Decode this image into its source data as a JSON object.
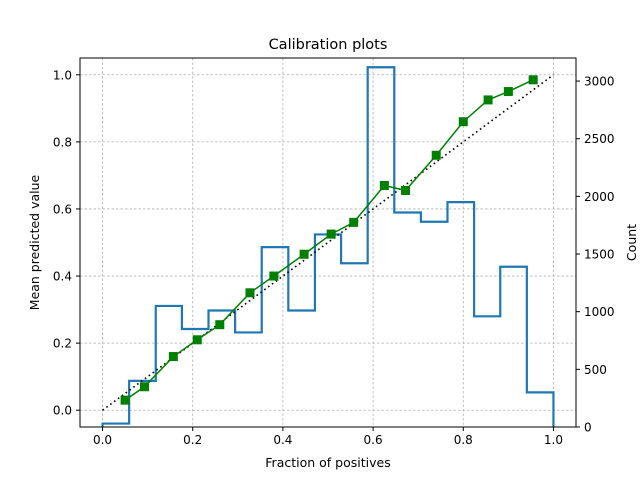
{
  "chart_data": {
    "type": "line",
    "title": "Calibration plots",
    "xlabel": "Fraction of positives",
    "ylabel": "Mean predicted value",
    "y2label": "Count",
    "xlim": [
      -0.05,
      1.05
    ],
    "ylim": [
      -0.05,
      1.05
    ],
    "y2lim": [
      0,
      3200
    ],
    "xticks": [
      "0.0",
      "0.2",
      "0.4",
      "0.6",
      "0.8",
      "1.0"
    ],
    "yticks": [
      "0.0",
      "0.2",
      "0.4",
      "0.6",
      "0.8",
      "1.0"
    ],
    "y2ticks": [
      "0",
      "500",
      "1000",
      "1500",
      "2000",
      "2500",
      "3000"
    ],
    "grid": true,
    "reference_line": {
      "style": "dotted",
      "color": "#000000",
      "x": [
        0,
        1
      ],
      "y": [
        0,
        1
      ]
    },
    "calibration_curve": {
      "color": "#008000",
      "marker": "square",
      "x": [
        0.05,
        0.093,
        0.157,
        0.21,
        0.26,
        0.327,
        0.38,
        0.447,
        0.507,
        0.557,
        0.625,
        0.672,
        0.74,
        0.8,
        0.855,
        0.9,
        0.955
      ],
      "y": [
        0.03,
        0.07,
        0.16,
        0.21,
        0.255,
        0.35,
        0.4,
        0.465,
        0.525,
        0.56,
        0.67,
        0.655,
        0.76,
        0.86,
        0.925,
        0.95,
        0.985
      ]
    },
    "histogram": {
      "color": "#1f77b4",
      "edges": [
        0.0,
        0.059,
        0.118,
        0.176,
        0.235,
        0.294,
        0.353,
        0.412,
        0.471,
        0.529,
        0.588,
        0.647,
        0.706,
        0.765,
        0.824,
        0.882,
        0.941,
        1.0
      ],
      "counts": [
        30,
        400,
        1050,
        850,
        1010,
        820,
        1560,
        1010,
        1670,
        1420,
        3120,
        1860,
        1780,
        1950,
        960,
        1390,
        300
      ]
    }
  }
}
